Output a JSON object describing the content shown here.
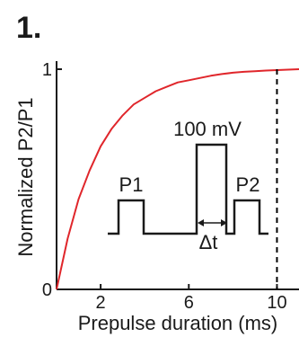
{
  "panel_label": "1.",
  "chart_data": {
    "type": "line",
    "xlabel": "Prepulse duration (ms)",
    "ylabel": "Normalized P2/P1",
    "xlim": [
      0,
      11
    ],
    "ylim": [
      0,
      1
    ],
    "xticks": [
      2,
      6,
      10
    ],
    "yticks": [
      0,
      1
    ],
    "grid": false,
    "series": [
      {
        "color": "#e0262b",
        "x": [
          0,
          0.5,
          1,
          1.5,
          2,
          2.5,
          3,
          3.5,
          4,
          4.5,
          5,
          5.5,
          6,
          6.5,
          7,
          7.5,
          8,
          8.5,
          9,
          9.5,
          10,
          10.5,
          11
        ],
        "y": [
          0,
          0.23,
          0.41,
          0.54,
          0.65,
          0.73,
          0.79,
          0.84,
          0.87,
          0.9,
          0.92,
          0.94,
          0.95,
          0.96,
          0.97,
          0.978,
          0.984,
          0.988,
          0.991,
          0.994,
          0.996,
          0.998,
          1.0
        ]
      }
    ],
    "reference_line": {
      "x": 10,
      "style": "dashed",
      "color": "#000000"
    }
  },
  "inset": {
    "p1_label": "P1",
    "p2_label": "P2",
    "pulse_label": "100 mV",
    "delta_label": "Δt"
  }
}
